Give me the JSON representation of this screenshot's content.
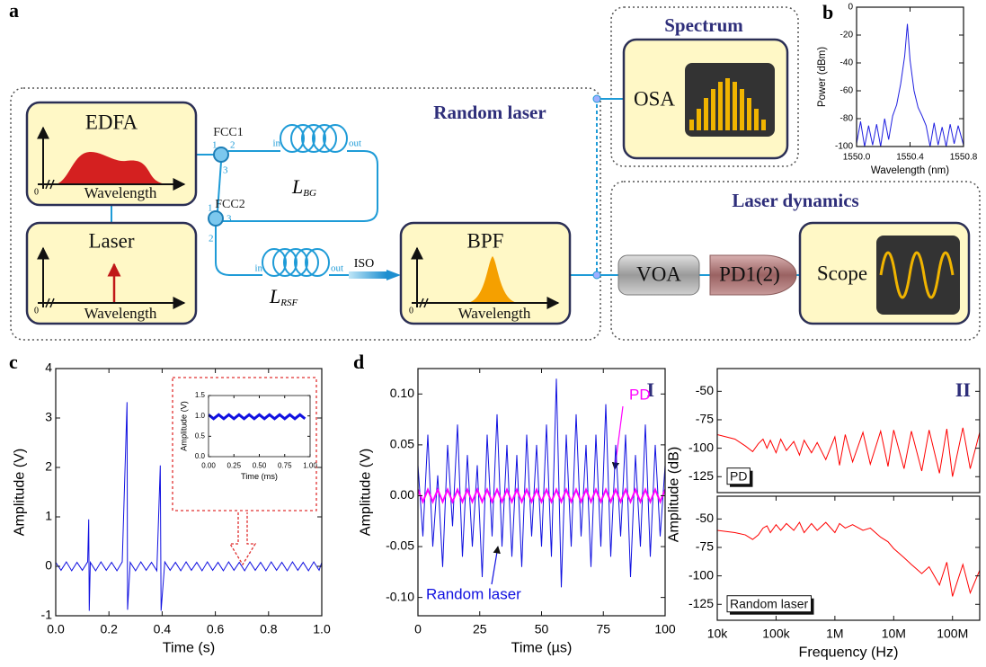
{
  "diagram": {
    "panel_labels": [
      "a",
      "b",
      "c",
      "d"
    ],
    "boxes": {
      "random_laser": "Random laser",
      "spectrum": "Spectrum",
      "laser_dynamics": "Laser dynamics"
    },
    "components": {
      "edfa": "EDFA",
      "laser": "Laser",
      "bpf": "BPF",
      "osa": "OSA",
      "voa": "VOA",
      "pd": "PD1(2)",
      "scope": "Scope"
    },
    "axis_label": "Wavelength",
    "axis_zero": "0",
    "couplers": {
      "fcc1": "FCC1",
      "fcc2": "FCC2"
    },
    "ports": [
      "1",
      "2",
      "3"
    ],
    "fibers": {
      "bg": {
        "symbol": "L",
        "subscript": "BG"
      },
      "rsf": {
        "symbol": "L",
        "subscript": "RSF"
      },
      "in": "in",
      "out": "out"
    },
    "iso": "ISO"
  },
  "chart_data": [
    {
      "type": "line",
      "xlabel": "Wavelength (nm)",
      "ylabel": "Power (dBm)",
      "xlim": [
        1550.0,
        1550.8
      ],
      "xticks": [
        {
          "value": 1550,
          "label": "1550.0"
        },
        1550.4,
        1550.8
      ],
      "ylim": [
        -100,
        0
      ],
      "yticks": [
        0,
        -20,
        -40,
        -60,
        -80,
        -100
      ],
      "series": [
        {
          "color": "#2020e0",
          "x": [
            1550.0,
            1550.03,
            1550.06,
            1550.09,
            1550.12,
            1550.15,
            1550.18,
            1550.21,
            1550.24,
            1550.27,
            1550.3,
            1550.33,
            1550.36,
            1550.38,
            1550.4,
            1550.43,
            1550.46,
            1550.49,
            1550.52,
            1550.55,
            1550.58,
            1550.61,
            1550.64,
            1550.67,
            1550.7,
            1550.73,
            1550.76,
            1550.8
          ],
          "values": [
            -98,
            -82,
            -100,
            -85,
            -99,
            -84,
            -100,
            -80,
            -95,
            -78,
            -70,
            -55,
            -35,
            -12,
            -38,
            -60,
            -72,
            -78,
            -85,
            -100,
            -83,
            -99,
            -86,
            -100,
            -84,
            -98,
            -85,
            -99
          ]
        }
      ]
    },
    {
      "type": "line",
      "xlabel": "Time (s)",
      "ylabel": "Amplitude (V)",
      "xlim": [
        0,
        1
      ],
      "xticks": [
        {
          "value": 0,
          "label": "0.0"
        },
        0.2,
        0.4,
        0.6,
        0.8,
        {
          "value": 1,
          "label": "1.0"
        }
      ],
      "ylim": [
        -1,
        4
      ],
      "yticks": [
        -1,
        0,
        1,
        2,
        3,
        4
      ],
      "series": [
        {
          "color": "#1010e0",
          "x": [
            0,
            0.02,
            0.04,
            0.06,
            0.08,
            0.1,
            0.12,
            0.124,
            0.126,
            0.13,
            0.15,
            0.17,
            0.19,
            0.21,
            0.23,
            0.25,
            0.268,
            0.27,
            0.28,
            0.3,
            0.32,
            0.34,
            0.36,
            0.38,
            0.393,
            0.396,
            0.41,
            0.43,
            0.45,
            0.47,
            0.49,
            0.51,
            0.53,
            0.55,
            0.57,
            0.59,
            0.61,
            0.63,
            0.65,
            0.67,
            0.69,
            0.71,
            0.73,
            0.75,
            0.77,
            0.79,
            0.81,
            0.83,
            0.85,
            0.87,
            0.89,
            0.91,
            0.93,
            0.95,
            0.97,
            0.99,
            1.0
          ],
          "values": [
            0.08,
            -0.08,
            0.09,
            -0.09,
            0.08,
            -0.08,
            0.09,
            0.95,
            -0.9,
            0.08,
            -0.09,
            0.09,
            -0.08,
            0.08,
            -0.09,
            0.09,
            3.32,
            -0.88,
            0.08,
            -0.09,
            0.09,
            -0.08,
            0.08,
            -0.09,
            2.04,
            -0.9,
            0.09,
            -0.08,
            0.08,
            -0.09,
            0.09,
            -0.08,
            0.08,
            -0.09,
            0.09,
            -0.08,
            0.08,
            -0.09,
            0.09,
            -0.08,
            0.08,
            -0.09,
            0.09,
            -0.08,
            0.08,
            -0.09,
            0.09,
            -0.08,
            0.08,
            -0.09,
            0.09,
            -0.08,
            0.08,
            -0.09,
            0.09,
            -0.08,
            0.08
          ]
        }
      ]
    },
    {
      "type": "line",
      "xlabel": "Time (ms)",
      "ylabel": "Amplitude (V)",
      "xlim": [
        0,
        1
      ],
      "xticks": [
        {
          "value": 0,
          "label": "0.00"
        },
        0.25,
        {
          "value": 0.5,
          "label": "0.50"
        },
        0.75,
        {
          "value": 1,
          "label": "1.00"
        }
      ],
      "ylim": [
        0,
        1.5
      ],
      "yticks": [
        {
          "value": 0,
          "label": "0.0"
        },
        0.5,
        {
          "value": 1,
          "label": "1.0"
        },
        1.5
      ],
      "series": [
        {
          "color": "#1010e0",
          "x": [
            0,
            0.05,
            0.1,
            0.15,
            0.2,
            0.25,
            0.3,
            0.35,
            0.4,
            0.45,
            0.5,
            0.55,
            0.6,
            0.65,
            0.7,
            0.75,
            0.8,
            0.85,
            0.9,
            0.95
          ],
          "values": [
            1.03,
            0.93,
            1.03,
            0.93,
            1.03,
            0.93,
            1.03,
            0.93,
            1.03,
            0.93,
            1.03,
            0.93,
            1.03,
            0.93,
            1.03,
            0.93,
            1.03,
            0.93,
            1.03,
            0.93
          ]
        }
      ]
    },
    {
      "type": "line",
      "label": "I",
      "xlabel": "Time (µs)",
      "ylabel": "Amplitude (V)",
      "xlim": [
        0,
        100
      ],
      "xticks": [
        0,
        25,
        50,
        75,
        100
      ],
      "ylim": [
        -0.118,
        0.125
      ],
      "yticks": [
        {
          "value": -0.1,
          "label": "-0.10"
        },
        {
          "value": -0.05,
          "label": "-0.05"
        },
        {
          "value": 0,
          "label": "0.00"
        },
        {
          "value": 0.05,
          "label": "0.05"
        },
        {
          "value": 0.1,
          "label": "0.10"
        }
      ],
      "series": [
        {
          "name": "PD",
          "color": "#ff00ff",
          "x": [
            0,
            2,
            4,
            6,
            8,
            10,
            12,
            14,
            16,
            18,
            20,
            22,
            24,
            26,
            28,
            30,
            32,
            34,
            36,
            38,
            40,
            42,
            44,
            46,
            48,
            50,
            52,
            54,
            56,
            58,
            60,
            62,
            64,
            66,
            68,
            70,
            72,
            74,
            76,
            78,
            80,
            82,
            84,
            86,
            88,
            90,
            92,
            94,
            96,
            98,
            100
          ],
          "values": [
            0.006,
            -0.006,
            0.006,
            -0.006,
            0.006,
            -0.006,
            0.006,
            -0.006,
            0.006,
            -0.006,
            0.006,
            -0.006,
            0.006,
            -0.006,
            0.006,
            -0.006,
            0.006,
            -0.006,
            0.006,
            -0.006,
            0.006,
            -0.006,
            0.006,
            -0.006,
            0.006,
            -0.006,
            0.006,
            -0.006,
            0.006,
            -0.006,
            0.006,
            -0.006,
            0.006,
            -0.006,
            0.006,
            -0.006,
            0.006,
            -0.006,
            0.006,
            -0.006,
            0.006,
            -0.006,
            0.006,
            -0.006,
            0.006,
            -0.006,
            0.006,
            -0.006,
            0.006,
            -0.006,
            0.006
          ]
        },
        {
          "name": "Random laser",
          "color": "#1010e0",
          "x": [
            0,
            2,
            4,
            6,
            8,
            10,
            12,
            14,
            16,
            18,
            20,
            22,
            24,
            26,
            28,
            30,
            32,
            34,
            36,
            38,
            40,
            42,
            44,
            46,
            48,
            50,
            52,
            54,
            56,
            58,
            60,
            62,
            64,
            66,
            68,
            70,
            72,
            74,
            76,
            78,
            80,
            82,
            84,
            86,
            88,
            90,
            92,
            94,
            96,
            98,
            100
          ],
          "values": [
            0.03,
            -0.04,
            0.06,
            -0.05,
            0.02,
            -0.07,
            0.05,
            -0.03,
            0.07,
            -0.06,
            0.04,
            -0.05,
            0.03,
            -0.08,
            0.06,
            -0.04,
            0.08,
            -0.05,
            0.05,
            -0.06,
            0.04,
            -0.07,
            0.06,
            -0.04,
            0.05,
            -0.05,
            0.07,
            -0.06,
            0.115,
            -0.09,
            0.06,
            -0.05,
            0.08,
            -0.04,
            0.05,
            -0.07,
            0.06,
            -0.05,
            0.09,
            -0.06,
            0.05,
            -0.04,
            0.06,
            -0.08,
            0.04,
            -0.05,
            0.07,
            -0.06,
            0.05,
            -0.04,
            0.03
          ]
        }
      ]
    },
    {
      "type": "line",
      "label": "II",
      "ylabel": "Amplitude (dB)",
      "xscale": "log",
      "xlim": [
        10000,
        290000000
      ],
      "ylim": [
        -139,
        -30
      ],
      "yticks": [
        -50,
        -75,
        -100,
        -125
      ],
      "series": [
        {
          "name": "PD",
          "color": "#ff0000",
          "x": [
            10000,
            20000,
            30000,
            40000,
            50000,
            60000,
            70000,
            80000,
            100000,
            120000,
            150000,
            200000,
            250000,
            300000,
            400000,
            500000,
            700000,
            1000000,
            1200000,
            1500000,
            2000000,
            3000000,
            4000000,
            6000000,
            8000000,
            10000000,
            15000000,
            20000000,
            30000000,
            40000000,
            60000000,
            80000000,
            100000000,
            150000000,
            200000000,
            290000000
          ],
          "values": [
            -88,
            -92,
            -98,
            -103,
            -96,
            -92,
            -100,
            -93,
            -104,
            -92,
            -102,
            -94,
            -106,
            -93,
            -104,
            -95,
            -110,
            -90,
            -115,
            -88,
            -112,
            -86,
            -114,
            -85,
            -116,
            -84,
            -118,
            -85,
            -120,
            -84,
            -122,
            -83,
            -125,
            -82,
            -118,
            -86
          ]
        }
      ]
    },
    {
      "type": "line",
      "xlabel": "Frequency (Hz)",
      "xscale": "log",
      "xlim": [
        10000,
        290000000
      ],
      "xticks": [
        {
          "value": 10000,
          "label": "10k"
        },
        {
          "value": 100000,
          "label": "100k"
        },
        {
          "value": 1000000,
          "label": "1M"
        },
        {
          "value": 10000000,
          "label": "10M"
        },
        {
          "value": 100000000,
          "label": "100M"
        }
      ],
      "ylim": [
        -139,
        -30
      ],
      "yticks": [
        -50,
        -75,
        -100,
        -125
      ],
      "series": [
        {
          "name": "Random laser",
          "color": "#ff0000",
          "x": [
            10000,
            20000,
            30000,
            40000,
            50000,
            60000,
            70000,
            80000,
            100000,
            120000,
            150000,
            200000,
            250000,
            300000,
            400000,
            500000,
            700000,
            1000000,
            1200000,
            1500000,
            2000000,
            3000000,
            4000000,
            6000000,
            8000000,
            10000000,
            15000000,
            20000000,
            30000000,
            40000000,
            60000000,
            80000000,
            100000000,
            150000000,
            200000000,
            290000000
          ],
          "values": [
            -60,
            -62,
            -64,
            -68,
            -64,
            -58,
            -56,
            -62,
            -55,
            -60,
            -54,
            -60,
            -53,
            -62,
            -54,
            -60,
            -53,
            -62,
            -54,
            -58,
            -55,
            -60,
            -58,
            -66,
            -70,
            -76,
            -84,
            -90,
            -98,
            -92,
            -108,
            -88,
            -118,
            -90,
            -115,
            -95
          ]
        }
      ]
    }
  ]
}
